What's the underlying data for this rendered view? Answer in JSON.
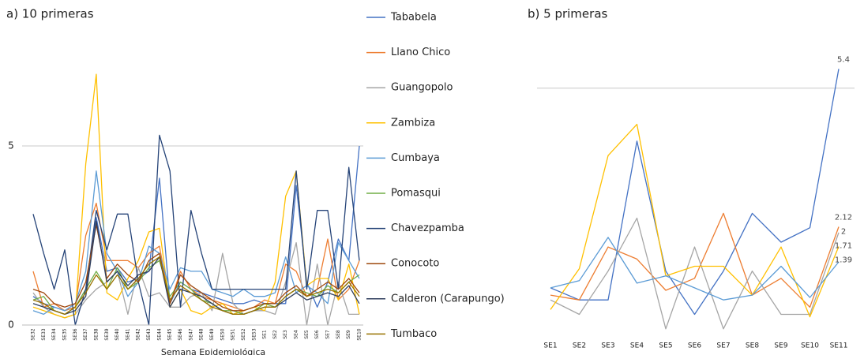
{
  "chart_data": [
    {
      "type": "line",
      "title": "a) 10 primeras",
      "x_label": "Semana Epidemiológica",
      "categories": [
        "SE32",
        "SE33",
        "SE34",
        "SE35",
        "SE36",
        "SE37",
        "SE38",
        "SE39",
        "SE40",
        "SE41",
        "SE42",
        "SE43",
        "SE44",
        "SE45",
        "SE46",
        "SE47",
        "SE48",
        "SE49",
        "SE50",
        "SE51",
        "SE52",
        "SE53",
        "SE1",
        "SE2",
        "SE3",
        "SE4",
        "SE5",
        "SE6",
        "SE7",
        "SE8",
        "SE9",
        "SE10"
      ],
      "series": [
        {
          "name": "Tababela",
          "color": "#4472c4",
          "values": [
            0.8,
            0.6,
            0.5,
            0.4,
            0.5,
            1.0,
            3.0,
            1.5,
            1.6,
            1.2,
            1.3,
            1.5,
            4.1,
            0.6,
            1.2,
            1.0,
            0.9,
            0.8,
            0.7,
            0.6,
            0.6,
            0.7,
            0.6,
            0.6,
            0.6,
            3.9,
            1.2,
            0.5,
            1.2,
            2.4,
            1.8,
            5.0
          ]
        },
        {
          "name": "Llano Chico",
          "color": "#ed7d31",
          "values": [
            1.5,
            0.5,
            0.6,
            0.4,
            0.5,
            2.5,
            3.4,
            1.8,
            1.8,
            1.8,
            1.6,
            2.0,
            2.2,
            0.6,
            1.5,
            1.0,
            0.8,
            0.7,
            0.6,
            0.5,
            0.4,
            0.5,
            0.7,
            0.6,
            1.7,
            1.5,
            0.8,
            1.0,
            2.4,
            0.7,
            1.0,
            1.8
          ]
        },
        {
          "name": "Guangopolo",
          "color": "#a5a5a5",
          "values": [
            0.9,
            0.5,
            0.3,
            0.2,
            0.3,
            0.7,
            1.0,
            1.2,
            1.5,
            0.3,
            1.6,
            0.8,
            0.9,
            0.5,
            0.5,
            0.8,
            0.9,
            0.4,
            2.0,
            0.6,
            0.3,
            0.4,
            0.4,
            0.3,
            1.2,
            2.3,
            0,
            1.7,
            0,
            1.2,
            0.3,
            0.3
          ]
        },
        {
          "name": "Zambiza",
          "color": "#ffc000",
          "values": [
            0.5,
            0.4,
            0.3,
            0.2,
            0.3,
            4.5,
            7.0,
            0.9,
            0.7,
            1.3,
            1.8,
            2.6,
            2.7,
            0.5,
            1.0,
            0.4,
            0.3,
            0.5,
            0.6,
            0.3,
            0.4,
            0.5,
            0.4,
            1.2,
            3.6,
            4.3,
            1.1,
            1.3,
            1.3,
            0.7,
            1.7,
            0.3
          ]
        },
        {
          "name": "Cumbaya",
          "color": "#5b9bd5",
          "values": [
            0.4,
            0.3,
            0.5,
            0.4,
            0.6,
            1.5,
            4.3,
            2.0,
            1.5,
            0.8,
            1.2,
            2.2,
            2.0,
            1.0,
            1.6,
            1.5,
            1.5,
            1.0,
            0.9,
            0.8,
            1.0,
            0.8,
            0.8,
            0.9,
            1.9,
            0.9,
            1.1,
            0.9,
            0.6,
            2.3,
            1.8,
            1.3
          ]
        },
        {
          "name": "Pomasqui",
          "color": "#70ad47",
          "values": [
            0.7,
            0.8,
            0.4,
            0.3,
            0.5,
            1.0,
            1.5,
            1.0,
            1.6,
            1.0,
            1.2,
            1.6,
            1.8,
            0.8,
            1.2,
            1.0,
            0.7,
            0.6,
            0.4,
            0.4,
            0.3,
            0.4,
            0.6,
            0.5,
            0.8,
            1.0,
            0.9,
            0.8,
            1.1,
            0.9,
            1.2,
            1.4
          ]
        },
        {
          "name": "Chavezpamba",
          "color": "#264478",
          "values": [
            3.1,
            2.0,
            1.0,
            2.1,
            0,
            1.0,
            3.2,
            2.1,
            3.1,
            3.1,
            1.2,
            0,
            5.3,
            4.3,
            0.5,
            3.2,
            2.0,
            1.0,
            1.0,
            1.0,
            1.0,
            1.0,
            1.0,
            1.0,
            1.0,
            4.3,
            1.0,
            3.2,
            3.2,
            1.0,
            4.4,
            1.8
          ]
        },
        {
          "name": "Conocoto",
          "color": "#9e480e",
          "values": [
            1.0,
            0.9,
            0.6,
            0.5,
            0.6,
            1.2,
            2.8,
            1.3,
            1.7,
            1.4,
            1.2,
            1.8,
            2.0,
            0.6,
            1.4,
            1.1,
            0.9,
            0.7,
            0.5,
            0.4,
            0.4,
            0.5,
            0.6,
            0.6,
            0.9,
            1.1,
            0.8,
            1.0,
            1.2,
            1.0,
            1.3,
            0.9
          ]
        },
        {
          "name": "Calderon (Carapungo)",
          "color": "#2f3e5c",
          "values": [
            0.6,
            0.5,
            0.4,
            0.3,
            0.4,
            0.8,
            2.9,
            1.2,
            1.5,
            1.1,
            1.4,
            1.5,
            1.9,
            0.5,
            1.0,
            0.9,
            0.8,
            0.6,
            0.4,
            0.3,
            0.3,
            0.4,
            0.5,
            0.5,
            0.7,
            0.9,
            0.7,
            0.8,
            0.9,
            0.8,
            1.1,
            0.6
          ]
        },
        {
          "name": "Tumbaco",
          "color": "#997300",
          "values": [
            0.7,
            0.6,
            0.4,
            0.3,
            0.5,
            0.9,
            1.4,
            1.0,
            1.4,
            1.0,
            1.3,
            1.7,
            1.9,
            0.7,
            1.1,
            0.9,
            0.7,
            0.5,
            0.4,
            0.3,
            0.3,
            0.4,
            0.5,
            0.5,
            0.8,
            1.0,
            0.8,
            0.9,
            1.0,
            0.9,
            1.2,
            0.8
          ]
        }
      ],
      "ylim": [
        0,
        7.5
      ],
      "yticks": [
        0,
        5
      ],
      "grid": true,
      "legend": "right"
    },
    {
      "type": "line",
      "title": "b) 5 primeras",
      "categories": [
        "SE1",
        "SE2",
        "SE3",
        "SE4",
        "SE5",
        "SE6",
        "SE7",
        "SE8",
        "SE9",
        "SE10",
        "SE11"
      ],
      "series": [
        {
          "name": "Tababela",
          "color": "#4472c4",
          "values": [
            0.85,
            0.6,
            0.6,
            3.9,
            1.2,
            0.3,
            1.2,
            2.4,
            1.8,
            2.1,
            5.4
          ]
        },
        {
          "name": "Llano Chico",
          "color": "#ed7d31",
          "values": [
            0.7,
            0.6,
            1.7,
            1.45,
            0.8,
            1.05,
            2.4,
            0.7,
            1.05,
            0.45,
            2.12
          ]
        },
        {
          "name": "Guangopolo",
          "color": "#a5a5a5",
          "values": [
            0.6,
            0.3,
            1.2,
            2.3,
            0,
            1.7,
            0,
            1.2,
            0.3,
            0.3,
            2
          ]
        },
        {
          "name": "Zambiza",
          "color": "#ffc000",
          "values": [
            0.4,
            1.25,
            3.6,
            4.25,
            1.1,
            1.3,
            1.3,
            0.7,
            1.7,
            0.25,
            1.71
          ]
        },
        {
          "name": "Cumbaya",
          "color": "#5b9bd5",
          "values": [
            0.85,
            1,
            1.9,
            0.95,
            1.1,
            0.85,
            0.6,
            0.7,
            1.3,
            0.65,
            1.39
          ]
        }
      ],
      "ylim": [
        -0.2,
        5.8
      ],
      "yticks": [
        5
      ],
      "grid": true,
      "show_ytick_labels": false,
      "label_last": true
    }
  ]
}
